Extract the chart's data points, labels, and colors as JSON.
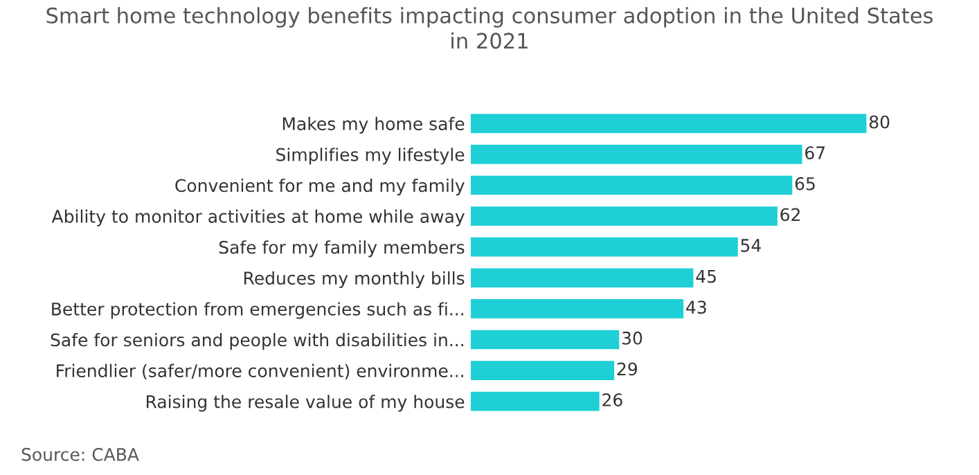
{
  "chart_data": {
    "type": "bar",
    "orientation": "horizontal",
    "title": "Smart home technology benefits impacting consumer adoption in the United States\nin 2021",
    "categories": [
      "Makes my home safe",
      "Simplifies my lifestyle",
      "Convenient for me and my family",
      "Ability to monitor activities at home while away",
      "Safe for my family members",
      "Reduces my monthly bills",
      "Better protection from emergencies such as fi...",
      "Safe for seniors and people with disabilities in...",
      "Friendlier (safer/more convenient) environme...",
      "Raising the resale value of my house"
    ],
    "values": [
      80,
      67,
      65,
      62,
      54,
      45,
      43,
      30,
      29,
      26
    ],
    "color": "#1ecfd6",
    "data_labels": true,
    "grid": false,
    "legend": false,
    "annotations": [
      "Source: CABA"
    ]
  }
}
